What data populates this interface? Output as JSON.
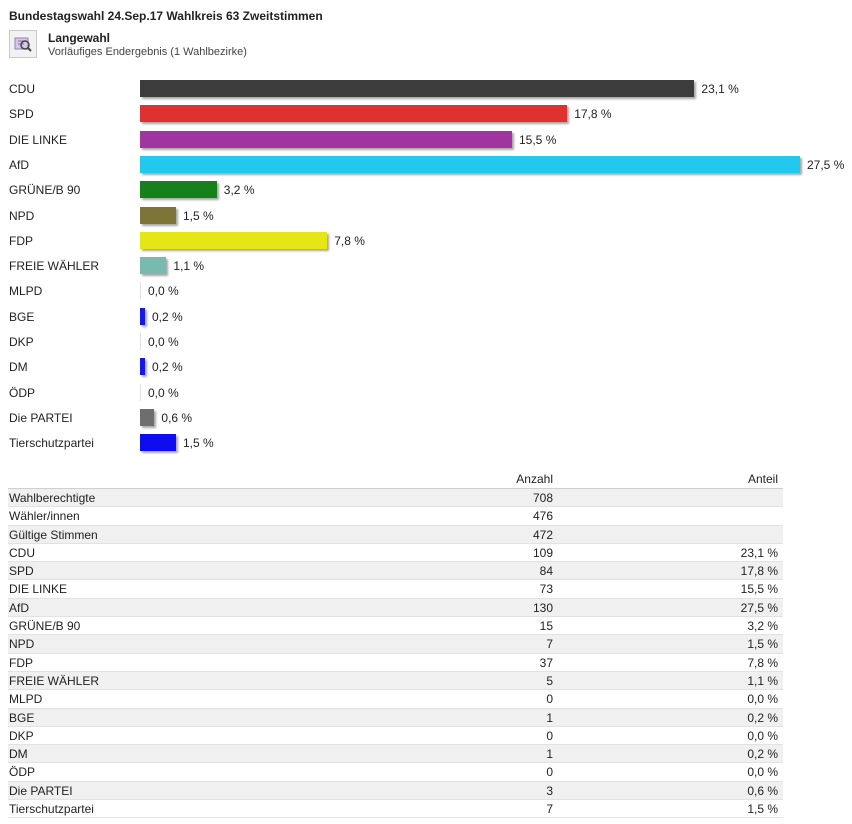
{
  "page_title": "Bundestagswahl 24.Sep.17 Wahlkreis 63 Zweitstimmen",
  "area": {
    "name": "Langewahl",
    "subtitle": "Vorläufiges Endergebnis (1 Wahlbezirke)",
    "icon": "map-magnifier-icon"
  },
  "chart_data": {
    "type": "bar",
    "orientation": "horizontal",
    "unit": "%",
    "xlim": [
      0,
      27.5
    ],
    "categories": [
      "CDU",
      "SPD",
      "DIE LINKE",
      "AfD",
      "GRÜNE/B 90",
      "NPD",
      "FDP",
      "FREIE WÄHLER",
      "MLPD",
      "BGE",
      "DKP",
      "DM",
      "ÖDP",
      "Die PARTEI",
      "Tierschutzpartei"
    ],
    "values": [
      23.1,
      17.8,
      15.5,
      27.5,
      3.2,
      1.5,
      7.8,
      1.1,
      0.0,
      0.2,
      0.0,
      0.2,
      0.0,
      0.6,
      1.5
    ],
    "value_labels": [
      "23,1 %",
      "17,8 %",
      "15,5 %",
      "27,5 %",
      "3,2 %",
      "1,5 %",
      "7,8 %",
      "1,1 %",
      "0,0 %",
      "0,2 %",
      "0,0 %",
      "0,2 %",
      "0,0 %",
      "0,6 %",
      "1,5 %"
    ],
    "colors": [
      "#3c3c3c",
      "#e03131",
      "#a0359f",
      "#22c8ee",
      "#16801a",
      "#7d7438",
      "#e6e616",
      "#78bab0",
      "#e0e0e0",
      "#1818e6",
      "#e0e0e0",
      "#1818e6",
      "#e0e0e0",
      "#6e6e6e",
      "#0d0df0"
    ],
    "grid": false,
    "legend": "none"
  },
  "table": {
    "headers": {
      "name": "",
      "count": "Anzahl",
      "share": "Anteil"
    },
    "rows": [
      {
        "name": "Wahlberechtigte",
        "count": "708",
        "share": ""
      },
      {
        "name": "Wähler/innen",
        "count": "476",
        "share": ""
      },
      {
        "name": "Gültige Stimmen",
        "count": "472",
        "share": ""
      },
      {
        "name": "CDU",
        "count": "109",
        "share": "23,1 %"
      },
      {
        "name": "SPD",
        "count": "84",
        "share": "17,8 %"
      },
      {
        "name": "DIE LINKE",
        "count": "73",
        "share": "15,5 %"
      },
      {
        "name": "AfD",
        "count": "130",
        "share": "27,5 %"
      },
      {
        "name": "GRÜNE/B 90",
        "count": "15",
        "share": "3,2 %"
      },
      {
        "name": "NPD",
        "count": "7",
        "share": "1,5 %"
      },
      {
        "name": "FDP",
        "count": "37",
        "share": "7,8 %"
      },
      {
        "name": "FREIE WÄHLER",
        "count": "5",
        "share": "1,1 %"
      },
      {
        "name": "MLPD",
        "count": "0",
        "share": "0,0 %"
      },
      {
        "name": "BGE",
        "count": "1",
        "share": "0,2 %"
      },
      {
        "name": "DKP",
        "count": "0",
        "share": "0,0 %"
      },
      {
        "name": "DM",
        "count": "1",
        "share": "0,2 %"
      },
      {
        "name": "ÖDP",
        "count": "0",
        "share": "0,0 %"
      },
      {
        "name": "Die PARTEI",
        "count": "3",
        "share": "0,6 %"
      },
      {
        "name": "Tierschutzpartei",
        "count": "7",
        "share": "1,5 %"
      }
    ]
  }
}
